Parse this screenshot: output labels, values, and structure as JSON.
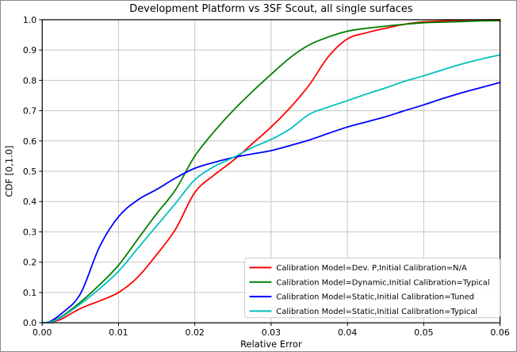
{
  "chart_data": {
    "type": "line",
    "title": "Development Platform vs 3SF Scout, all single surfaces",
    "xlabel": "Relative Error",
    "ylabel": "CDF [0,1.0]",
    "xlim": [
      0,
      0.06
    ],
    "ylim": [
      0,
      1.0
    ],
    "grid": true,
    "legend_position": "lower right",
    "xticks": [
      0,
      0.01,
      0.02,
      0.03,
      0.04,
      0.05,
      0.06
    ],
    "xtick_labels": [
      "0.00",
      "0.01",
      "0.02",
      "0.03",
      "0.04",
      "0.05",
      "0.06"
    ],
    "yticks": [
      0,
      0.1,
      0.2,
      0.3,
      0.4,
      0.5,
      0.6,
      0.7,
      0.8,
      0.9,
      1.0
    ],
    "ytick_labels": [
      "0.0",
      "0.1",
      "0.2",
      "0.3",
      "0.4",
      "0.5",
      "0.6",
      "0.7",
      "0.8",
      "0.9",
      "1.0"
    ],
    "x": [
      0,
      0.001,
      0.0025,
      0.005,
      0.0075,
      0.01,
      0.0125,
      0.015,
      0.0175,
      0.02,
      0.0225,
      0.025,
      0.0275,
      0.03,
      0.0325,
      0.035,
      0.0375,
      0.04,
      0.0425,
      0.045,
      0.0475,
      0.05,
      0.0525,
      0.055,
      0.0575,
      0.06
    ],
    "series": [
      {
        "id": "dev-p-na",
        "name": "Calibration Model=Dev. P,Initial Calibration=N/A",
        "color": "#ff0000",
        "values": [
          0,
          0.001,
          0.012,
          0.047,
          0.072,
          0.1,
          0.15,
          0.225,
          0.31,
          0.43,
          0.487,
          0.535,
          0.59,
          0.646,
          0.71,
          0.785,
          0.878,
          0.937,
          0.957,
          0.972,
          0.985,
          0.993,
          0.996,
          0.998,
          0.999,
          1.0
        ]
      },
      {
        "id": "dynamic-typical",
        "name": "Calibration Model=Dynamic,Initial Calibration=Typical",
        "color": "#008000",
        "values": [
          0,
          0.002,
          0.02,
          0.068,
          0.125,
          0.19,
          0.275,
          0.36,
          0.44,
          0.55,
          0.63,
          0.7,
          0.762,
          0.82,
          0.875,
          0.917,
          0.943,
          0.962,
          0.972,
          0.979,
          0.985,
          0.99,
          0.992,
          0.994,
          0.996,
          0.997
        ]
      },
      {
        "id": "static-tuned",
        "name": "Calibration Model=Static,Initial Calibration=Tuned",
        "color": "#0000ff",
        "values": [
          0,
          0.004,
          0.03,
          0.095,
          0.25,
          0.35,
          0.405,
          0.44,
          0.478,
          0.51,
          0.529,
          0.545,
          0.557,
          0.568,
          0.585,
          0.603,
          0.625,
          0.646,
          0.663,
          0.68,
          0.7,
          0.719,
          0.74,
          0.759,
          0.776,
          0.793
        ]
      },
      {
        "id": "static-typical",
        "name": "Calibration Model=Static,Initial Calibration=Typical",
        "color": "#00bfbf",
        "values": [
          0,
          0.002,
          0.018,
          0.062,
          0.112,
          0.17,
          0.245,
          0.32,
          0.395,
          0.472,
          0.515,
          0.545,
          0.578,
          0.605,
          0.64,
          0.688,
          0.712,
          0.733,
          0.755,
          0.775,
          0.797,
          0.815,
          0.835,
          0.854,
          0.87,
          0.884
        ]
      }
    ],
    "colors": {
      "background": "#ffffff",
      "grid": "#c6c6c6",
      "axis": "#000000",
      "legend_border": "#cccccc",
      "legend_background": "#ffffff"
    }
  }
}
